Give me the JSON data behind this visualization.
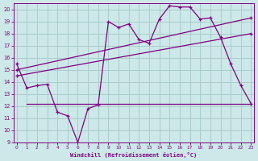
{
  "background_color": "#cce8e8",
  "grid_color": "#aacccc",
  "line_color": "#800080",
  "xlim": [
    -0.3,
    23.3
  ],
  "ylim": [
    9,
    20.5
  ],
  "yticks": [
    9,
    10,
    11,
    12,
    13,
    14,
    15,
    16,
    17,
    18,
    19,
    20
  ],
  "xticks": [
    0,
    1,
    2,
    3,
    4,
    5,
    6,
    7,
    8,
    9,
    10,
    11,
    12,
    13,
    14,
    15,
    16,
    17,
    18,
    19,
    20,
    21,
    22,
    23
  ],
  "xlabel": "Windchill (Refroidissement éolien,°C)",
  "jagged_x": [
    0,
    1,
    2,
    3,
    4,
    5,
    6,
    7,
    8,
    9,
    10,
    11,
    12,
    13,
    14,
    15,
    16,
    17,
    18,
    19,
    20,
    21,
    22,
    23
  ],
  "jagged_y": [
    15.5,
    13.5,
    13.7,
    13.8,
    11.5,
    11.2,
    9.0,
    11.8,
    12.1,
    19.0,
    18.5,
    18.8,
    17.5,
    17.2,
    19.2,
    20.3,
    20.2,
    20.2,
    19.2,
    19.3,
    17.7,
    15.5,
    13.7,
    12.2
  ],
  "trend1_x": [
    0,
    23
  ],
  "trend1_y": [
    15.0,
    19.3
  ],
  "trend2_x": [
    0,
    23
  ],
  "trend2_y": [
    14.5,
    18.0
  ],
  "hline_y": 12.2,
  "hline_x0": 1,
  "hline_x1": 23
}
